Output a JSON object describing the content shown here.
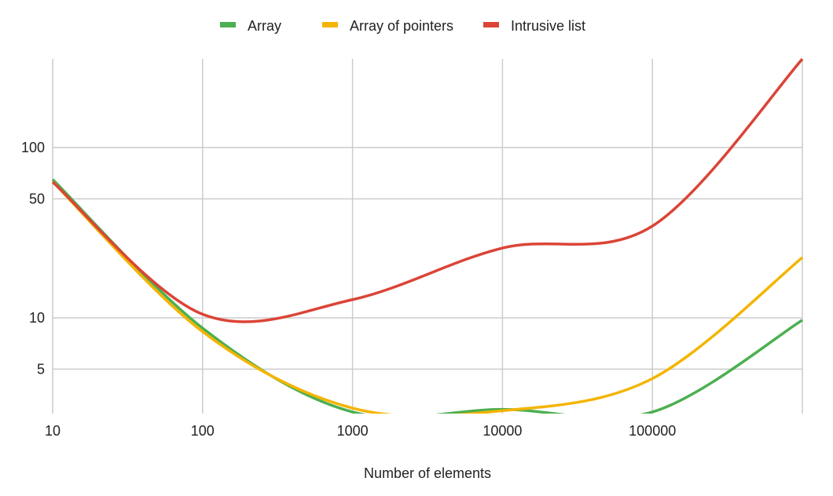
{
  "chart_data": {
    "type": "line",
    "title": "",
    "xlabel": "Number of elements",
    "ylabel": "",
    "x_scale": "log",
    "y_scale": "log",
    "x": [
      10,
      100,
      1000,
      10000,
      100000,
      1000000
    ],
    "x_tick_labels": [
      "10",
      "100",
      "1000",
      "10000",
      "100000"
    ],
    "y_ticks": [
      5,
      10,
      50,
      100
    ],
    "y_tick_labels": [
      "5",
      "10",
      "50",
      "100"
    ],
    "xlim": [
      10,
      1000000
    ],
    "ylim": [
      2.8,
      330
    ],
    "grid": true,
    "legend_position": "top",
    "series": [
      {
        "name": "Array",
        "color": "#4caf50",
        "values": [
          65,
          8.7,
          2.8,
          2.9,
          2.8,
          9.7
        ]
      },
      {
        "name": "Array of pointers",
        "color": "#f4b400",
        "values": [
          63,
          8.3,
          2.95,
          2.85,
          4.4,
          22.6
        ]
      },
      {
        "name": "Intrusive list",
        "color": "#db4437",
        "values": [
          62.7,
          10.5,
          12.8,
          25.7,
          34.6,
          331
        ]
      }
    ]
  }
}
